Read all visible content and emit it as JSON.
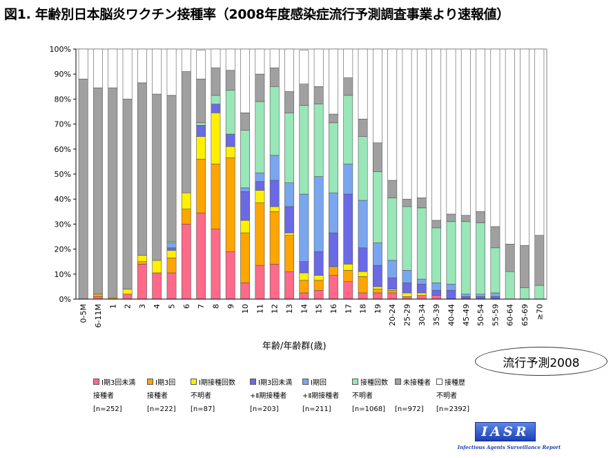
{
  "title": "図1. 年齢別日本脳炎ワクチン接種率（2008年度感染症流行予測調査事業より速報値）",
  "badge": "流行予測2008",
  "logo": {
    "text": "IASR",
    "subtitle": "Infectious Agents Surveillance Report"
  },
  "chart_data": {
    "type": "bar",
    "stacked": true,
    "title": "図1. 年齢別日本脳炎ワクチン接種率（2008年度感染症流行予測調査事業より速報値）",
    "xlabel": "年齢/年齢群(歳)",
    "ylabel": "",
    "ylim": [
      0,
      100
    ],
    "ytick_labels": [
      "0%",
      "10%",
      "20%",
      "30%",
      "40%",
      "50%",
      "60%",
      "70%",
      "80%",
      "90%",
      "100%"
    ],
    "grid": "none",
    "legend_position": "bottom",
    "categories": [
      "0-5M",
      "6-11M",
      "1",
      "2",
      "3",
      "4",
      "5",
      "6",
      "7",
      "8",
      "9",
      "10",
      "11",
      "12",
      "13",
      "14",
      "15",
      "16",
      "17",
      "18",
      "19",
      "20-24",
      "25-29",
      "30-34",
      "35-39",
      "40-44",
      "45-49",
      "50-54",
      "55-59",
      "60-64",
      "65-69",
      "≥70"
    ],
    "series": [
      {
        "name": "Ⅰ期3回未満接種者",
        "lines": [
          "Ⅰ期3回未満",
          "接種者",
          "[n=252]"
        ],
        "color": "#ff6a8a",
        "values": [
          0,
          1,
          0,
          2,
          14,
          10.5,
          10.5,
          30,
          34.5,
          28,
          19,
          6.5,
          13.5,
          14,
          11,
          2.5,
          3.5,
          9.5,
          7,
          2.5,
          2.5,
          2.5,
          1,
          1.5,
          1.5,
          0,
          0,
          0,
          0,
          0,
          0,
          0
        ]
      },
      {
        "name": "Ⅰ期3回接種者",
        "lines": [
          "Ⅰ期3回",
          "接種者",
          "[n=222]"
        ],
        "color": "#ffa500",
        "values": [
          0,
          1,
          0.5,
          0,
          1,
          0,
          6,
          6,
          21.5,
          26,
          37.5,
          20,
          25,
          21,
          14.5,
          5,
          4,
          3.5,
          4.5,
          6.5,
          1.5,
          1,
          0,
          0,
          0,
          0,
          0,
          0,
          0,
          0,
          0,
          0
        ]
      },
      {
        "name": "Ⅰ期接種回数不明者",
        "lines": [
          "Ⅰ期接種回数",
          "不明者",
          "[n=87]"
        ],
        "color": "#ffef00",
        "values": [
          0,
          0,
          0,
          2,
          2.5,
          5,
          3,
          6.5,
          9,
          20.5,
          4.5,
          5,
          5,
          2,
          1,
          3,
          2,
          0,
          2.5,
          2,
          1,
          0.5,
          1.5,
          1,
          0,
          0,
          0,
          0,
          0,
          0,
          0,
          0
        ]
      },
      {
        "name": "Ⅰ期3回未満+Ⅱ期接種者",
        "lines": [
          "Ⅰ期3回未満",
          "+Ⅱ期接種者",
          "[n=203]"
        ],
        "color": "#6a6ae6",
        "values": [
          0,
          0,
          0,
          0,
          0,
          0,
          1,
          0,
          4.5,
          3.5,
          5,
          11.5,
          3.5,
          10.5,
          10.5,
          4.5,
          9.5,
          13.5,
          28,
          9.5,
          8.5,
          4.5,
          4,
          3.5,
          2,
          3.5,
          1,
          1,
          1,
          0,
          0,
          0
        ]
      },
      {
        "name": "Ⅰ期回+Ⅱ期接種者",
        "lines": [
          "Ⅰ期回",
          "+Ⅱ期接種者",
          "[n=211]"
        ],
        "color": "#7aa6f0",
        "values": [
          0,
          0,
          0,
          0,
          0,
          0,
          2,
          0,
          0,
          0,
          0,
          1.5,
          3.5,
          10,
          9.5,
          27,
          30,
          16,
          12,
          19,
          9,
          7,
          5,
          2,
          3,
          2.5,
          1,
          1,
          1.5,
          0,
          0,
          0
        ]
      },
      {
        "name": "接種回数不明者",
        "lines": [
          "接種回数",
          "不明者",
          "[n=1068]"
        ],
        "color": "#99e6b8",
        "values": [
          0,
          0,
          0,
          0,
          0,
          0,
          0.5,
          0,
          1,
          3.5,
          17.5,
          23,
          28.5,
          27.5,
          28,
          35.5,
          29,
          28,
          27.5,
          25.5,
          28.5,
          25,
          25.5,
          28.5,
          22,
          25,
          29,
          28.5,
          18,
          11,
          4.5,
          5.5
        ]
      },
      {
        "name": "未接種者",
        "lines": [
          "未接種者",
          "",
          "[n=972]"
        ],
        "color": "#a0a0a0",
        "values": [
          88,
          82.5,
          84,
          76,
          69,
          66.5,
          58.5,
          48.5,
          17.5,
          11,
          8,
          7,
          11,
          7.5,
          8.5,
          8.5,
          7,
          3.5,
          7,
          7,
          11.5,
          7,
          3,
          4,
          3,
          3,
          2.5,
          4.5,
          8.5,
          11,
          17,
          20
        ]
      },
      {
        "name": "接種歴不明者",
        "lines": [
          "接種歴",
          "不明者",
          "[n=2392]"
        ],
        "color": "#ffffff",
        "values": [
          12,
          15.5,
          15.5,
          20,
          13.5,
          18,
          18.5,
          9,
          11.5,
          7.5,
          8.5,
          25.5,
          10,
          7.5,
          17,
          13.5,
          15,
          26,
          11.5,
          28,
          37.5,
          52.5,
          60,
          59.5,
          68.5,
          66,
          66.5,
          65,
          71,
          78,
          78.5,
          74.5
        ]
      }
    ]
  }
}
